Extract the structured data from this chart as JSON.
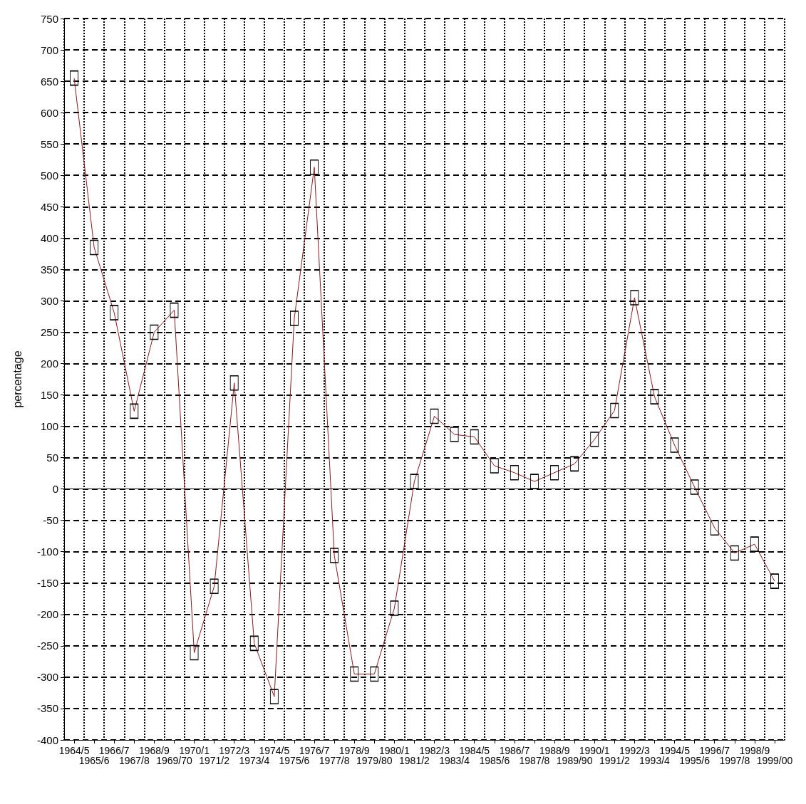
{
  "chart_data": {
    "type": "line",
    "ylabel": "percentage",
    "categories": [
      "1964/5",
      "1965/6",
      "1966/7",
      "1967/8",
      "1968/9",
      "1969/70",
      "1970/1",
      "1971/2",
      "1972/3",
      "1973/4",
      "1974/5",
      "1975/6",
      "1976/7",
      "1977/8",
      "1978/9",
      "1979/80",
      "1980/1",
      "1981/2",
      "1982/3",
      "1983/4",
      "1984/5",
      "1985/6",
      "1986/7",
      "1987/8",
      "1988/9",
      "1989/90",
      "1990/1",
      "1991/2",
      "1992/3",
      "1993/4",
      "1994/5",
      "1995/6",
      "1996/7",
      "1997/8",
      "1998/9",
      "1999/00"
    ],
    "series": [
      {
        "color": "#8b1a1a",
        "values": [
          655,
          385,
          281,
          124,
          250,
          285,
          -261,
          -155,
          169,
          -246,
          -331,
          272,
          513,
          -106,
          -295,
          -295,
          -190,
          12,
          116,
          87,
          83,
          37,
          26,
          12,
          26,
          40,
          79,
          125,
          305,
          147,
          70,
          3,
          -62,
          -102,
          -88,
          -147
        ]
      }
    ],
    "ylim": [
      -400,
      750
    ],
    "yticks": [
      -400,
      -350,
      -300,
      -250,
      -200,
      -150,
      -100,
      -50,
      0,
      50,
      100,
      150,
      200,
      250,
      300,
      350,
      400,
      450,
      500,
      550,
      600,
      650,
      700,
      750
    ],
    "grid": true,
    "marker": "square",
    "line_style": "solid"
  }
}
